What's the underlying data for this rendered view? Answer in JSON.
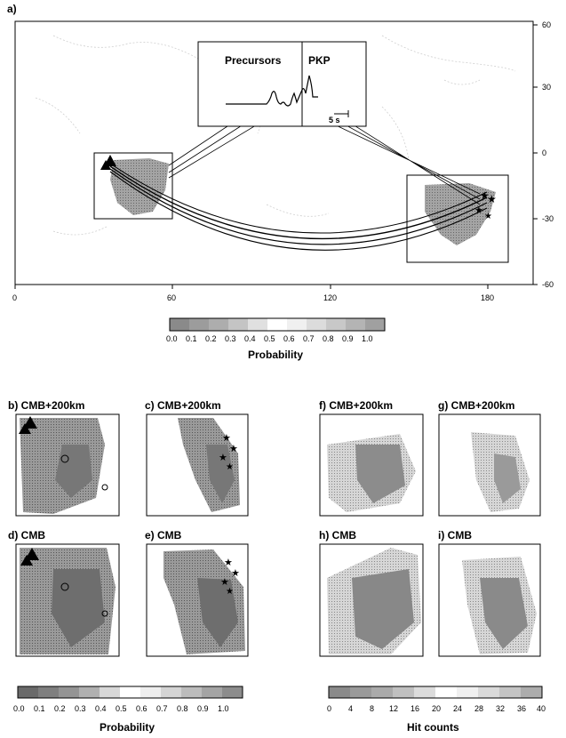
{
  "panel_a": {
    "label": "a)",
    "y_ticks": [
      "60",
      "30",
      "0",
      "-30",
      "-60"
    ],
    "x_ticks": [
      "0",
      "60",
      "120",
      "180"
    ],
    "inset": {
      "precursors": "Precursors",
      "pkp": "PKP",
      "scale": "5 s"
    }
  },
  "colorbar_prob": {
    "ticks": [
      "0.0",
      "0.1",
      "0.2",
      "0.3",
      "0.4",
      "0.5",
      "0.6",
      "0.7",
      "0.8",
      "0.9",
      "1.0"
    ],
    "label": "Probability"
  },
  "small_panels": [
    {
      "label": "b) CMB+200km"
    },
    {
      "label": "c) CMB+200km"
    },
    {
      "label": "f) CMB+200km"
    },
    {
      "label": "g) CMB+200km"
    },
    {
      "label": "d) CMB"
    },
    {
      "label": "e) CMB"
    },
    {
      "label": "h) CMB"
    },
    {
      "label": "i) CMB"
    }
  ],
  "colorbar_prob2": {
    "ticks": [
      "0.0",
      "0.1",
      "0.2",
      "0.3",
      "0.4",
      "0.5",
      "0.6",
      "0.7",
      "0.8",
      "0.9",
      "1.0"
    ],
    "label": "Probability"
  },
  "colorbar_hits": {
    "ticks": [
      "0",
      "4",
      "8",
      "12",
      "16",
      "20",
      "24",
      "28",
      "32",
      "36",
      "40"
    ],
    "label": "Hit counts"
  }
}
